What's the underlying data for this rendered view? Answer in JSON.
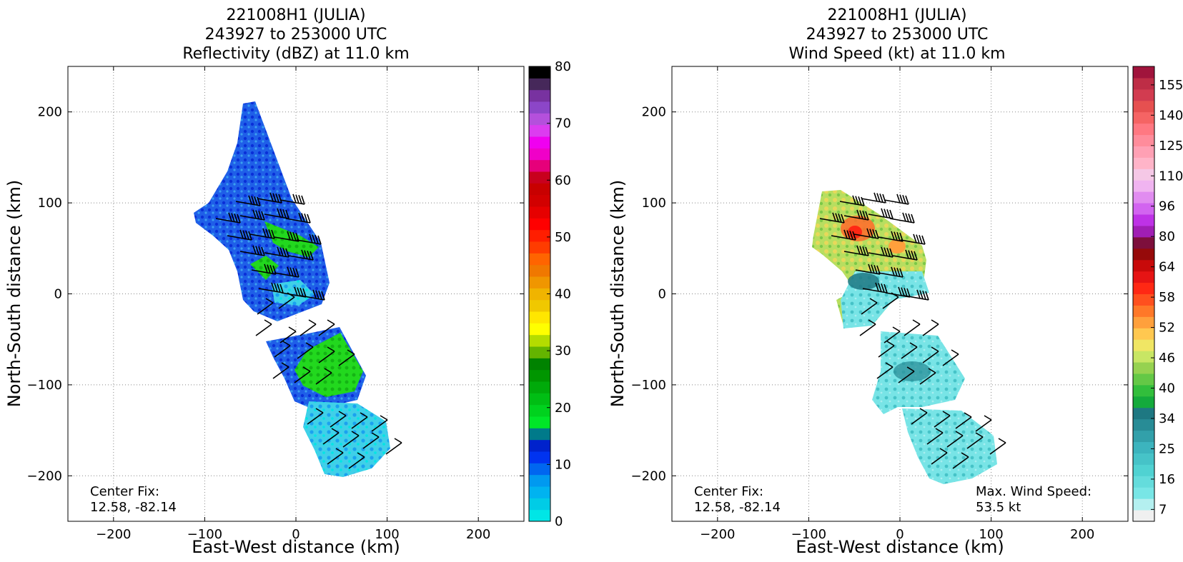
{
  "chart_data": [
    {
      "type": "heatmap",
      "title": [
        "221008H1 (JULIA)",
        "243927 to 253000 UTC",
        "Reflectivity (dBZ) at 11.0 km"
      ],
      "xlabel": "East-West distance (km)",
      "ylabel": "North-South distance (km)",
      "xlim": [
        -250,
        250
      ],
      "ylim": [
        -250,
        250
      ],
      "xticks": [
        -200,
        -100,
        0,
        100,
        200
      ],
      "yticks": [
        -200,
        -100,
        0,
        100,
        200
      ],
      "grid": true,
      "annotation_left": [
        "Center Fix:",
        "12.58, -82.14"
      ],
      "colorbar": {
        "range": [
          0,
          80
        ],
        "tick_labels": [
          "0",
          "10",
          "20",
          "30",
          "40",
          "50",
          "60",
          "70",
          "80"
        ],
        "colors": [
          "#00e6e6",
          "#00cce6",
          "#00b3f0",
          "#0099f0",
          "#0066f0",
          "#0033f0",
          "#0022cc",
          "#007a8a",
          "#00e628",
          "#00d21e",
          "#00be14",
          "#00aa0a",
          "#009600",
          "#008200",
          "#64b400",
          "#b4dc00",
          "#ffff00",
          "#ffe600",
          "#f0c800",
          "#f0b400",
          "#f09600",
          "#f07800",
          "#ff6400",
          "#ff3c00",
          "#ff1e00",
          "#ff0000",
          "#e60000",
          "#d20000",
          "#c80000",
          "#c8001e",
          "#e6007a",
          "#f000c8",
          "#f000f0",
          "#dc3cf0",
          "#b450dc",
          "#8c46c8",
          "#7832a0",
          "#46285a",
          "#000000"
        ]
      },
      "wind_max_label": null
    },
    {
      "type": "heatmap",
      "title": [
        "221008H1 (JULIA)",
        "243927 to 253000 UTC",
        "Wind Speed (kt) at 11.0 km"
      ],
      "xlabel": "East-West distance (km)",
      "ylabel": "North-South distance (km)",
      "xlim": [
        -250,
        250
      ],
      "ylim": [
        -250,
        250
      ],
      "xticks": [
        -200,
        -100,
        0,
        100,
        200
      ],
      "yticks": [
        -200,
        -100,
        0,
        100,
        200
      ],
      "grid": true,
      "annotation_left": [
        "Center Fix:",
        "12.58, -82.14"
      ],
      "annotation_right": [
        "Max. Wind Speed:",
        "53.5 kt"
      ],
      "colorbar": {
        "tick_labels": [
          "7",
          "16",
          "25",
          "34",
          "40",
          "46",
          "52",
          "58",
          "64",
          "80",
          "96",
          "110",
          "125",
          "140",
          "155"
        ],
        "colors": [
          "#f0f0f0",
          "#b4f0f0",
          "#78e6e6",
          "#64dcdc",
          "#50d2d2",
          "#46c3c8",
          "#3cb4be",
          "#32a0aa",
          "#288c96",
          "#1e7882",
          "#14aa3c",
          "#32be3c",
          "#64c846",
          "#96d250",
          "#c8e664",
          "#f0e664",
          "#ffc850",
          "#ffa03c",
          "#ff7828",
          "#ff501e",
          "#ff2814",
          "#e61414",
          "#c80a0a",
          "#960a0a",
          "#7d0f3c",
          "#a01eb4",
          "#be32e6",
          "#d264f0",
          "#e18cf0",
          "#f0b4f0",
          "#f5c8e6",
          "#ffb4c8",
          "#ffa0b4",
          "#ff8c9b",
          "#ff7882",
          "#f56464",
          "#e65050",
          "#d23c50",
          "#be2d46",
          "#a0143c"
        ]
      },
      "wind_max_label": "53.5 kt"
    }
  ]
}
